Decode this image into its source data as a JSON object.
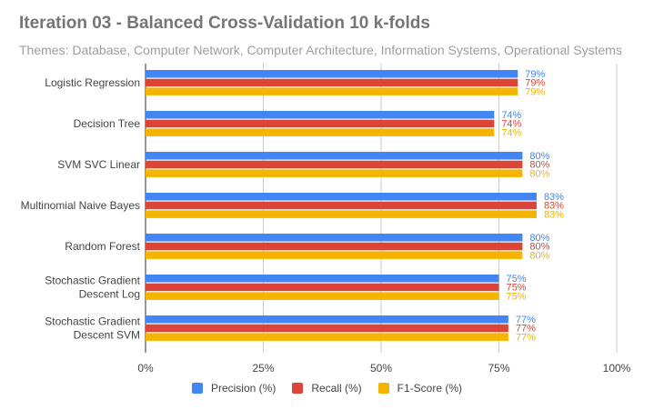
{
  "chart_data": {
    "type": "bar",
    "orientation": "horizontal",
    "title": "Iteration 03 - Balanced Cross-Validation 10 k-folds",
    "subtitle": "Themes: Database, Computer Network, Computer Architecture, Information Systems, Operational Systems",
    "categories": [
      [
        "Logistic Regression"
      ],
      [
        "Decision Tree"
      ],
      [
        "SVM SVC Linear"
      ],
      [
        "Multinomial Naive Bayes"
      ],
      [
        "Random Forest"
      ],
      [
        "Stochastic Gradient",
        "Descent Log"
      ],
      [
        "Stochastic Gradient",
        "Descent SVM"
      ]
    ],
    "series": [
      {
        "name": "Precision (%)",
        "color": "#4285f4",
        "values": [
          79,
          74,
          80,
          83,
          80,
          75,
          77
        ]
      },
      {
        "name": "Recall (%)",
        "color": "#db4437",
        "values": [
          79,
          74,
          80,
          83,
          80,
          75,
          77
        ]
      },
      {
        "name": "F1-Score (%)",
        "color": "#f4b400",
        "values": [
          79,
          74,
          80,
          83,
          80,
          75,
          77
        ]
      }
    ],
    "xlim": [
      0,
      100
    ],
    "ticks": [
      0,
      25,
      50,
      75,
      100
    ],
    "tick_labels": [
      "0%",
      "25%",
      "50%",
      "75%",
      "100%"
    ],
    "value_suffix": "%",
    "grid": true,
    "legend_position": "bottom"
  }
}
